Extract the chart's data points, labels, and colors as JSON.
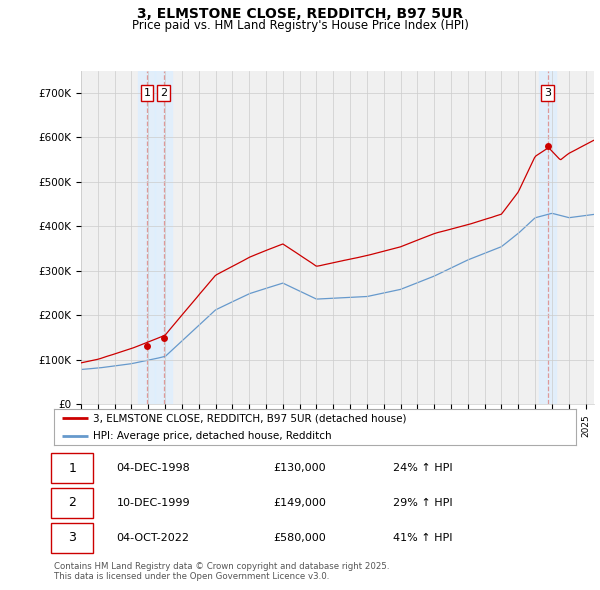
{
  "title": "3, ELMSTONE CLOSE, REDDITCH, B97 5UR",
  "subtitle": "Price paid vs. HM Land Registry's House Price Index (HPI)",
  "legend_line1": "3, ELMSTONE CLOSE, REDDITCH, B97 5UR (detached house)",
  "legend_line2": "HPI: Average price, detached house, Redditch",
  "footer1": "Contains HM Land Registry data © Crown copyright and database right 2025.",
  "footer2": "This data is licensed under the Open Government Licence v3.0.",
  "transactions": [
    {
      "num": 1,
      "date": "04-DEC-1998",
      "price": 130000,
      "hpi_pct": "24% ↑ HPI",
      "year": 1998.917
    },
    {
      "num": 2,
      "date": "10-DEC-1999",
      "price": 149000,
      "hpi_pct": "29% ↑ HPI",
      "year": 1999.917
    },
    {
      "num": 3,
      "date": "04-OCT-2022",
      "price": 580000,
      "hpi_pct": "41% ↑ HPI",
      "year": 2022.75
    }
  ],
  "red_color": "#cc0000",
  "blue_color": "#6699cc",
  "dashed_color": "#dd9999",
  "shade_color": "#ddeeff",
  "bg_color": "#f0f0f0",
  "grid_color": "#cccccc",
  "ylim": [
    0,
    750000
  ],
  "xlim_start": 1995.0,
  "xlim_end": 2025.5,
  "yticks": [
    0,
    100000,
    200000,
    300000,
    400000,
    500000,
    600000,
    700000
  ],
  "ylabels": [
    "£0",
    "£100K",
    "£200K",
    "£300K",
    "£400K",
    "£500K",
    "£600K",
    "£700K"
  ]
}
